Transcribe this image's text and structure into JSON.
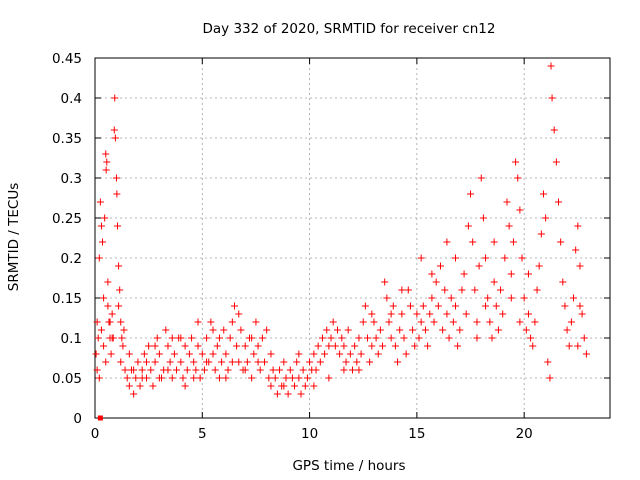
{
  "chart_data": {
    "type": "scatter",
    "title": "Day 332 of 2020, SRMTID for receiver cn12",
    "xlabel": "GPS time / hours",
    "ylabel": "SRMTID / TECUs",
    "xlim": [
      0,
      24
    ],
    "ylim": [
      0,
      0.45
    ],
    "xticks": [
      0,
      5,
      10,
      15,
      20
    ],
    "xtick_labels": [
      "0",
      "5",
      "10",
      "15",
      "20"
    ],
    "yticks": [
      0,
      0.05,
      0.1,
      0.15,
      0.2,
      0.25,
      0.3,
      0.35,
      0.4,
      0.45
    ],
    "ytick_labels": [
      "0",
      "0.05",
      "0.1",
      "0.15",
      "0.2",
      "0.25",
      "0.3",
      "0.35",
      "0.4",
      "0.45"
    ],
    "grid": true,
    "marker": "+",
    "color": "#ff0000",
    "series": [
      {
        "name": "SRMTID",
        "points": [
          [
            0.05,
            0.08
          ],
          [
            0.1,
            0.12
          ],
          [
            0.15,
            0.1
          ],
          [
            0.2,
            0.2
          ],
          [
            0.25,
            0.27
          ],
          [
            0.3,
            0.24
          ],
          [
            0.35,
            0.22
          ],
          [
            0.4,
            0.15
          ],
          [
            0.45,
            0.25
          ],
          [
            0.5,
            0.33
          ],
          [
            0.52,
            0.31
          ],
          [
            0.55,
            0.32
          ],
          [
            0.6,
            0.14
          ],
          [
            0.65,
            0.12
          ],
          [
            0.7,
            0.1
          ],
          [
            0.75,
            0.08
          ],
          [
            0.8,
            0.13
          ],
          [
            0.85,
            0.1
          ],
          [
            0.9,
            0.36
          ],
          [
            0.92,
            0.4
          ],
          [
            0.95,
            0.35
          ],
          [
            1.0,
            0.3
          ],
          [
            1.02,
            0.28
          ],
          [
            1.05,
            0.24
          ],
          [
            1.1,
            0.19
          ],
          [
            1.15,
            0.16
          ],
          [
            1.2,
            0.12
          ],
          [
            1.25,
            0.1
          ],
          [
            1.3,
            0.09
          ],
          [
            1.35,
            0.11
          ],
          [
            1.5,
            0.05
          ],
          [
            1.6,
            0.04
          ],
          [
            1.7,
            0.06
          ],
          [
            1.8,
            0.03
          ],
          [
            1.9,
            0.05
          ],
          [
            2.0,
            0.07
          ],
          [
            2.1,
            0.04
          ],
          [
            2.2,
            0.06
          ],
          [
            2.3,
            0.08
          ],
          [
            2.4,
            0.05
          ],
          [
            2.5,
            0.09
          ],
          [
            2.6,
            0.06
          ],
          [
            2.7,
            0.04
          ],
          [
            2.8,
            0.07
          ],
          [
            2.9,
            0.1
          ],
          [
            3.0,
            0.08
          ],
          [
            3.1,
            0.05
          ],
          [
            3.2,
            0.06
          ],
          [
            3.3,
            0.11
          ],
          [
            3.4,
            0.09
          ],
          [
            3.5,
            0.07
          ],
          [
            3.6,
            0.05
          ],
          [
            3.7,
            0.08
          ],
          [
            3.8,
            0.06
          ],
          [
            3.9,
            0.1
          ],
          [
            4.0,
            0.07
          ],
          [
            4.1,
            0.05
          ],
          [
            4.2,
            0.09
          ],
          [
            4.3,
            0.06
          ],
          [
            4.4,
            0.08
          ],
          [
            4.5,
            0.1
          ],
          [
            4.6,
            0.07
          ],
          [
            4.7,
            0.06
          ],
          [
            4.8,
            0.09
          ],
          [
            4.9,
            0.05
          ],
          [
            5.0,
            0.08
          ],
          [
            5.1,
            0.06
          ],
          [
            5.2,
            0.1
          ],
          [
            5.3,
            0.07
          ],
          [
            5.4,
            0.12
          ],
          [
            5.5,
            0.08
          ],
          [
            5.6,
            0.06
          ],
          [
            5.7,
            0.09
          ],
          [
            5.8,
            0.05
          ],
          [
            5.9,
            0.07
          ],
          [
            6.0,
            0.11
          ],
          [
            6.1,
            0.08
          ],
          [
            6.2,
            0.06
          ],
          [
            6.3,
            0.1
          ],
          [
            6.4,
            0.12
          ],
          [
            6.5,
            0.14
          ],
          [
            6.6,
            0.09
          ],
          [
            6.7,
            0.07
          ],
          [
            6.8,
            0.11
          ],
          [
            6.9,
            0.06
          ],
          [
            7.0,
            0.09
          ],
          [
            7.1,
            0.07
          ],
          [
            7.2,
            0.1
          ],
          [
            7.3,
            0.05
          ],
          [
            7.4,
            0.08
          ],
          [
            7.5,
            0.12
          ],
          [
            7.6,
            0.09
          ],
          [
            7.7,
            0.06
          ],
          [
            7.8,
            0.1
          ],
          [
            7.9,
            0.07
          ],
          [
            8.0,
            0.11
          ],
          [
            8.1,
            0.05
          ],
          [
            8.2,
            0.04
          ],
          [
            8.3,
            0.06
          ],
          [
            8.4,
            0.05
          ],
          [
            8.5,
            0.03
          ],
          [
            8.6,
            0.06
          ],
          [
            8.7,
            0.04
          ],
          [
            8.8,
            0.07
          ],
          [
            8.9,
            0.05
          ],
          [
            9.0,
            0.03
          ],
          [
            9.1,
            0.06
          ],
          [
            9.2,
            0.05
          ],
          [
            9.3,
            0.04
          ],
          [
            9.4,
            0.07
          ],
          [
            9.5,
            0.05
          ],
          [
            9.6,
            0.03
          ],
          [
            9.7,
            0.06
          ],
          [
            9.8,
            0.04
          ],
          [
            9.9,
            0.05
          ],
          [
            10.0,
            0.07
          ],
          [
            10.1,
            0.06
          ],
          [
            10.2,
            0.08
          ],
          [
            10.3,
            0.06
          ],
          [
            10.4,
            0.09
          ],
          [
            10.5,
            0.07
          ],
          [
            10.6,
            0.1
          ],
          [
            10.7,
            0.08
          ],
          [
            10.8,
            0.11
          ],
          [
            10.9,
            0.09
          ],
          [
            11.0,
            0.1
          ],
          [
            11.1,
            0.12
          ],
          [
            11.2,
            0.09
          ],
          [
            11.3,
            0.11
          ],
          [
            11.4,
            0.08
          ],
          [
            11.5,
            0.1
          ],
          [
            11.6,
            0.09
          ],
          [
            11.7,
            0.07
          ],
          [
            11.8,
            0.11
          ],
          [
            11.9,
            0.08
          ],
          [
            12.0,
            0.06
          ],
          [
            12.1,
            0.09
          ],
          [
            12.2,
            0.07
          ],
          [
            12.3,
            0.1
          ],
          [
            12.4,
            0.08
          ],
          [
            12.5,
            0.12
          ],
          [
            12.6,
            0.14
          ],
          [
            12.7,
            0.1
          ],
          [
            12.8,
            0.07
          ],
          [
            12.9,
            0.09
          ],
          [
            13.0,
            0.12
          ],
          [
            13.1,
            0.1
          ],
          [
            13.2,
            0.08
          ],
          [
            13.3,
            0.11
          ],
          [
            13.4,
            0.09
          ],
          [
            13.5,
            0.17
          ],
          [
            13.6,
            0.15
          ],
          [
            13.7,
            0.12
          ],
          [
            13.8,
            0.1
          ],
          [
            13.9,
            0.14
          ],
          [
            14.0,
            0.09
          ],
          [
            14.1,
            0.07
          ],
          [
            14.2,
            0.11
          ],
          [
            14.3,
            0.13
          ],
          [
            14.4,
            0.1
          ],
          [
            14.5,
            0.08
          ],
          [
            14.6,
            0.16
          ],
          [
            14.7,
            0.14
          ],
          [
            14.8,
            0.11
          ],
          [
            14.9,
            0.09
          ],
          [
            15.0,
            0.13
          ],
          [
            15.1,
            0.1
          ],
          [
            15.2,
            0.12
          ],
          [
            15.3,
            0.14
          ],
          [
            15.4,
            0.11
          ],
          [
            15.5,
            0.09
          ],
          [
            15.6,
            0.13
          ],
          [
            15.7,
            0.15
          ],
          [
            15.8,
            0.12
          ],
          [
            15.9,
            0.17
          ],
          [
            16.0,
            0.14
          ],
          [
            16.1,
            0.19
          ],
          [
            16.2,
            0.11
          ],
          [
            16.3,
            0.16
          ],
          [
            16.4,
            0.13
          ],
          [
            16.5,
            0.1
          ],
          [
            16.6,
            0.15
          ],
          [
            16.7,
            0.12
          ],
          [
            16.8,
            0.14
          ],
          [
            16.9,
            0.09
          ],
          [
            17.0,
            0.11
          ],
          [
            17.1,
            0.16
          ],
          [
            17.2,
            0.18
          ],
          [
            17.3,
            0.13
          ],
          [
            17.4,
            0.24
          ],
          [
            17.5,
            0.28
          ],
          [
            17.6,
            0.22
          ],
          [
            17.7,
            0.16
          ],
          [
            17.8,
            0.12
          ],
          [
            17.9,
            0.19
          ],
          [
            18.0,
            0.3
          ],
          [
            18.1,
            0.25
          ],
          [
            18.2,
            0.2
          ],
          [
            18.3,
            0.15
          ],
          [
            18.4,
            0.12
          ],
          [
            18.5,
            0.1
          ],
          [
            18.6,
            0.17
          ],
          [
            18.7,
            0.14
          ],
          [
            18.8,
            0.11
          ],
          [
            18.9,
            0.16
          ],
          [
            19.0,
            0.13
          ],
          [
            19.1,
            0.2
          ],
          [
            19.2,
            0.27
          ],
          [
            19.3,
            0.24
          ],
          [
            19.4,
            0.18
          ],
          [
            19.5,
            0.22
          ],
          [
            19.6,
            0.32
          ],
          [
            19.7,
            0.3
          ],
          [
            19.8,
            0.26
          ],
          [
            19.9,
            0.2
          ],
          [
            20.0,
            0.15
          ],
          [
            20.1,
            0.11
          ],
          [
            20.2,
            0.13
          ],
          [
            20.3,
            0.1
          ],
          [
            20.4,
            0.09
          ],
          [
            20.5,
            0.12
          ],
          [
            20.6,
            0.16
          ],
          [
            20.7,
            0.19
          ],
          [
            20.8,
            0.23
          ],
          [
            20.9,
            0.28
          ],
          [
            21.0,
            0.25
          ],
          [
            21.1,
            0.07
          ],
          [
            21.2,
            0.05
          ],
          [
            21.25,
            0.44
          ],
          [
            21.3,
            0.4
          ],
          [
            21.4,
            0.36
          ],
          [
            21.5,
            0.32
          ],
          [
            21.6,
            0.27
          ],
          [
            21.7,
            0.22
          ],
          [
            21.8,
            0.17
          ],
          [
            21.9,
            0.14
          ],
          [
            22.0,
            0.11
          ],
          [
            22.1,
            0.09
          ],
          [
            22.2,
            0.12
          ],
          [
            22.3,
            0.15
          ],
          [
            22.4,
            0.21
          ],
          [
            22.5,
            0.24
          ],
          [
            22.6,
            0.19
          ],
          [
            22.7,
            0.13
          ],
          [
            22.8,
            0.1
          ],
          [
            22.9,
            0.08
          ],
          [
            22.5,
            0.09
          ],
          [
            22.6,
            0.14
          ],
          [
            20.2,
            0.18
          ],
          [
            19.8,
            0.12
          ],
          [
            19.4,
            0.15
          ],
          [
            18.6,
            0.22
          ],
          [
            18.2,
            0.14
          ],
          [
            17.8,
            0.1
          ],
          [
            16.8,
            0.2
          ],
          [
            16.4,
            0.22
          ],
          [
            15.7,
            0.18
          ],
          [
            15.2,
            0.2
          ],
          [
            14.3,
            0.16
          ],
          [
            13.8,
            0.13
          ],
          [
            12.9,
            0.13
          ],
          [
            12.3,
            0.06
          ],
          [
            11.6,
            0.06
          ],
          [
            10.9,
            0.05
          ],
          [
            10.2,
            0.04
          ],
          [
            9.5,
            0.08
          ],
          [
            8.8,
            0.04
          ],
          [
            8.2,
            0.08
          ],
          [
            7.3,
            0.1
          ],
          [
            6.7,
            0.13
          ],
          [
            6.1,
            0.05
          ],
          [
            5.5,
            0.11
          ],
          [
            4.8,
            0.12
          ],
          [
            4.2,
            0.04
          ],
          [
            3.6,
            0.1
          ],
          [
            3.0,
            0.05
          ],
          [
            2.4,
            0.07
          ],
          [
            1.8,
            0.06
          ],
          [
            1.2,
            0.07
          ],
          [
            0.6,
            0.17
          ],
          [
            0.1,
            0.06
          ],
          [
            0.2,
            0.05
          ],
          [
            0.3,
            0.11
          ],
          [
            0.4,
            0.09
          ],
          [
            0.5,
            0.07
          ],
          [
            0.7,
            0.12
          ],
          [
            0.8,
            0.1
          ],
          [
            1.1,
            0.14
          ],
          [
            1.4,
            0.06
          ],
          [
            1.6,
            0.08
          ],
          [
            2.2,
            0.05
          ],
          [
            2.8,
            0.09
          ],
          [
            3.4,
            0.06
          ],
          [
            4.0,
            0.1
          ],
          [
            4.6,
            0.05
          ],
          [
            5.2,
            0.07
          ],
          [
            5.8,
            0.1
          ],
          [
            6.4,
            0.07
          ],
          [
            7.0,
            0.06
          ],
          [
            7.6,
            0.07
          ]
        ]
      }
    ],
    "outlier_markers": [
      [
        0.25,
        0.0
      ]
    ]
  }
}
